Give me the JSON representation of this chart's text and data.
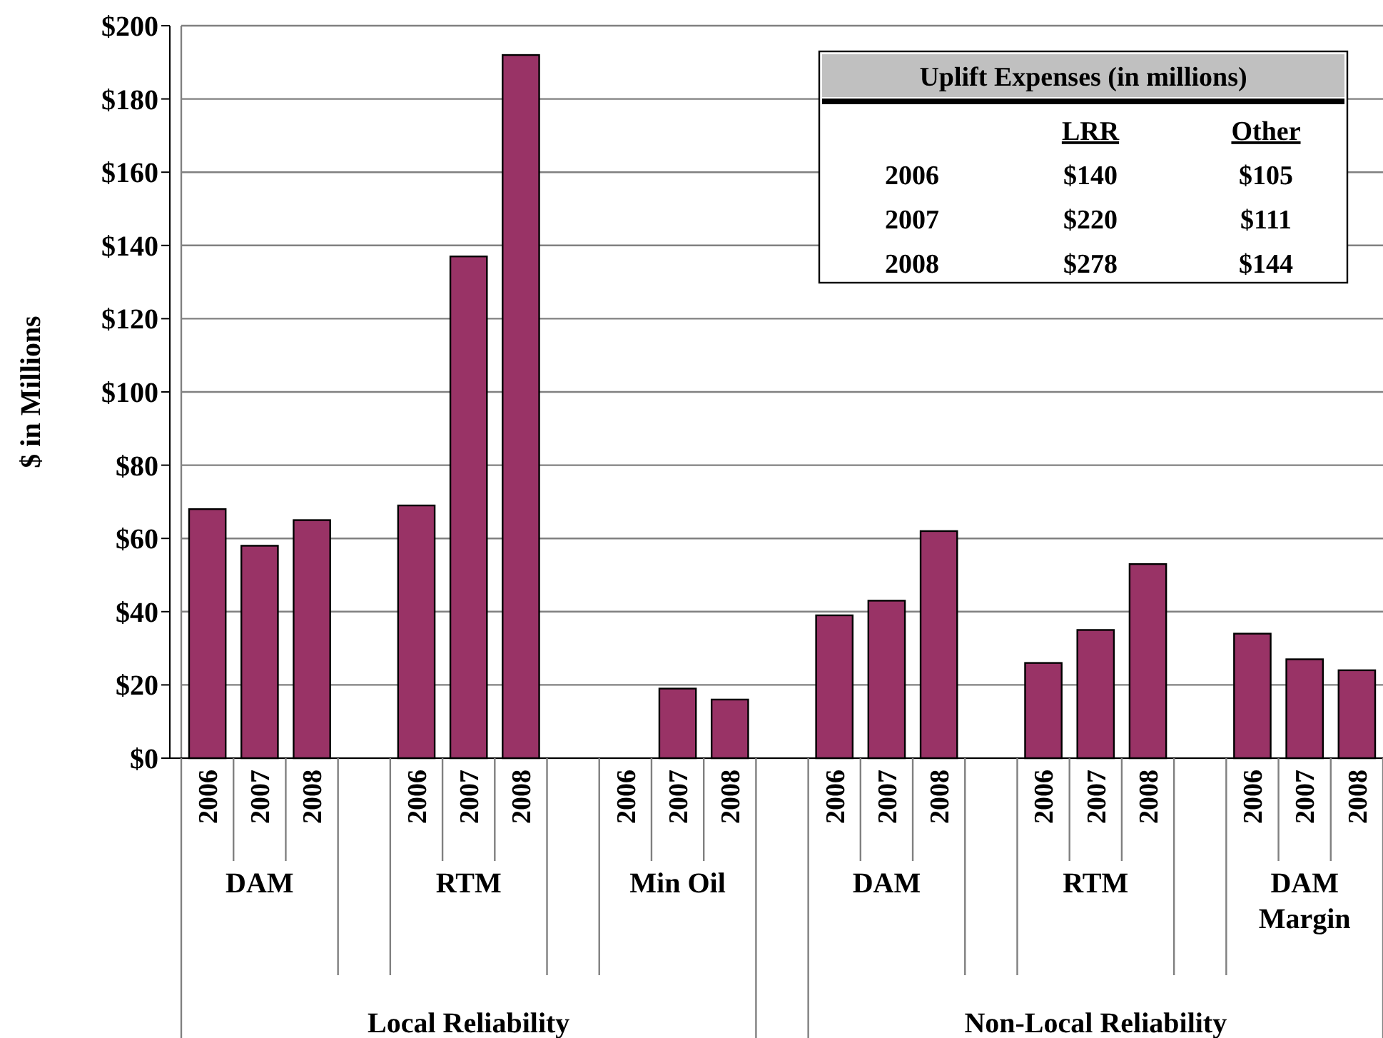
{
  "chart_data": {
    "type": "bar",
    "ylabel": "$ in Millions",
    "categories": [
      "2006",
      "2007",
      "2008",
      null,
      "2006",
      "2007",
      "2008",
      null,
      "2006",
      "2007",
      "2008",
      null,
      "2006",
      "2007",
      "2008",
      null,
      "2006",
      "2007",
      "2008",
      null,
      "2006",
      "2007",
      "2008"
    ],
    "values": [
      68,
      58,
      65,
      null,
      69,
      137,
      192,
      null,
      null,
      19,
      16,
      null,
      39,
      43,
      62,
      null,
      26,
      35,
      53,
      null,
      34,
      27,
      24
    ],
    "color": "#993366",
    "ylim": [
      0,
      200
    ],
    "yticks": [
      {
        "value": 0,
        "label": "$0"
      },
      {
        "value": 20,
        "label": "$20"
      },
      {
        "value": 40,
        "label": "$40"
      },
      {
        "value": 60,
        "label": "$60"
      },
      {
        "value": 80,
        "label": "$80"
      },
      {
        "value": 100,
        "label": "$100"
      },
      {
        "value": 120,
        "label": "$120"
      },
      {
        "value": 140,
        "label": "$140"
      },
      {
        "value": 160,
        "label": "$160"
      },
      {
        "value": 180,
        "label": "$180"
      },
      {
        "value": 200,
        "label": "$200"
      }
    ],
    "grid": "y",
    "annotations": [
      "DAM",
      "RTM",
      "Min Oil",
      "DAM",
      "RTM",
      "DAM Margin",
      "Local Reliability",
      "Non-Local Reliability",
      "Uplift Expenses (in millions)",
      "LRR",
      "Other",
      "2006",
      "$140",
      "$105",
      "2007",
      "$220",
      "$111",
      "2008",
      "$278",
      "$144"
    ]
  }
}
